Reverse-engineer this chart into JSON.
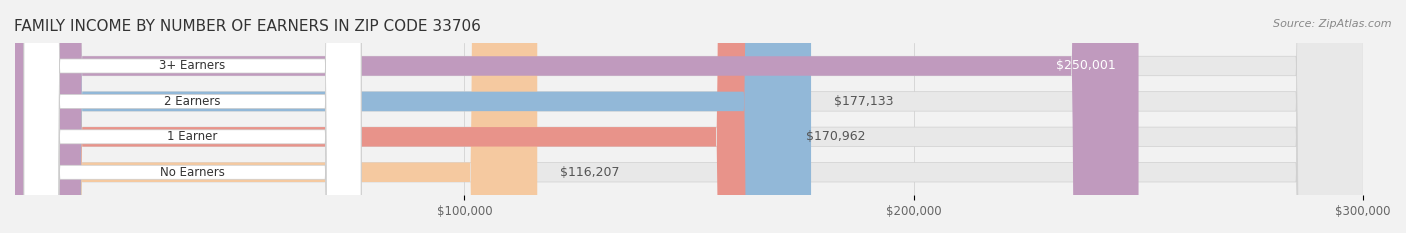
{
  "title": "FAMILY INCOME BY NUMBER OF EARNERS IN ZIP CODE 33706",
  "source": "Source: ZipAtlas.com",
  "categories": [
    "No Earners",
    "1 Earner",
    "2 Earners",
    "3+ Earners"
  ],
  "values": [
    116207,
    170962,
    177133,
    250001
  ],
  "labels": [
    "$116,207",
    "$170,962",
    "$177,133",
    "$250,001"
  ],
  "bar_colors": [
    "#f5c9a0",
    "#e8938a",
    "#92b8d8",
    "#c09abe"
  ],
  "bar_edge_colors": [
    "#e8a870",
    "#d97060",
    "#6090c0",
    "#a07aaa"
  ],
  "background_color": "#f2f2f2",
  "bar_background_color": "#e8e8e8",
  "xlim": [
    0,
    300000
  ],
  "xticks": [
    100000,
    200000,
    300000
  ],
  "xtick_labels": [
    "$100,000",
    "$200,000",
    "$300,000"
  ],
  "title_fontsize": 11,
  "source_fontsize": 8,
  "label_fontsize": 9,
  "category_fontsize": 8.5
}
